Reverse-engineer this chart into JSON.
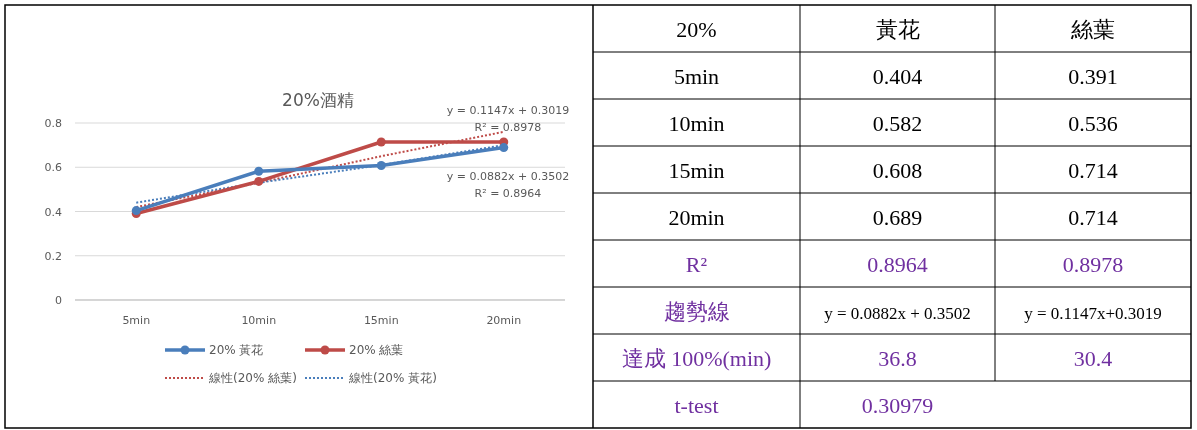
{
  "chart_data": {
    "type": "line",
    "title": "20%酒精",
    "categories": [
      "5min",
      "10min",
      "15min",
      "20min"
    ],
    "series": [
      {
        "name": "20% 黃花",
        "color": "#4a7ebb",
        "values": [
          0.404,
          0.582,
          0.608,
          0.689
        ],
        "marker": "circle",
        "line_style": "solid"
      },
      {
        "name": "20% 絲葉",
        "color": "#be4b48",
        "values": [
          0.391,
          0.536,
          0.714,
          0.714
        ],
        "marker": "circle",
        "line_style": "solid"
      },
      {
        "name": "線性(20% 絲葉)",
        "color": "#be4b48",
        "values": [
          0.42,
          0.53,
          0.65,
          0.76
        ],
        "marker": "none",
        "line_style": "dotted"
      },
      {
        "name": "線性(20% 黃花)",
        "color": "#4a7ebb",
        "values": [
          0.44,
          0.53,
          0.61,
          0.7
        ],
        "marker": "none",
        "line_style": "dotted"
      }
    ],
    "ylim": [
      0,
      0.8
    ],
    "yticks": [
      0,
      0.2,
      0.4,
      0.6,
      0.8
    ],
    "grid": "y",
    "legend": "bottom",
    "annotations": [
      "y = 0.1147x + 0.3019",
      "R² = 0.8978",
      "y = 0.0882x + 0.3502",
      "R² = 0.8964",
      "20%",
      "黃花",
      "絲葉",
      "R²",
      "0.8964",
      "0.8978",
      "趨勢線",
      "y = 0.0882x + 0.3502",
      "y = 0.1147x+0.3019",
      "達成 100%(min)",
      "36.8",
      "30.4",
      "t-test",
      "0.30979",
      "0.404",
      "0.391",
      "0.582",
      "0.536",
      "0.608",
      "0.714",
      "0.689",
      "0.714"
    ]
  }
}
